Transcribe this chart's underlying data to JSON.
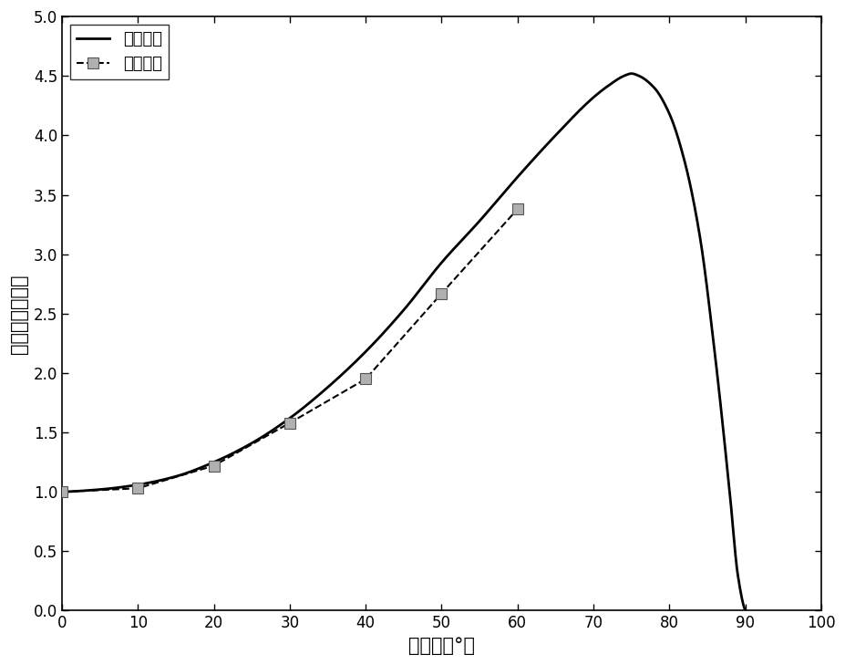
{
  "title": "",
  "xlabel": "入射角（°）",
  "ylabel": "相对质限去除率",
  "xlim": [
    0,
    100
  ],
  "ylim": [
    0,
    5
  ],
  "xticks": [
    0,
    10,
    20,
    30,
    40,
    50,
    60,
    70,
    80,
    90,
    100
  ],
  "yticks": [
    0,
    0.5,
    1,
    1.5,
    2,
    2.5,
    3,
    3.5,
    4,
    4.5,
    5
  ],
  "theory_color": "#000000",
  "exp_color": "#000000",
  "legend_labels": [
    "理论曲线",
    "实验曲线"
  ],
  "exp_x": [
    0,
    10,
    20,
    30,
    40,
    50,
    60
  ],
  "exp_y": [
    1.0,
    1.03,
    1.22,
    1.58,
    1.95,
    2.67,
    3.38
  ],
  "theory_x": [
    0,
    5,
    10,
    15,
    20,
    25,
    30,
    35,
    40,
    45,
    50,
    55,
    60,
    65,
    70,
    72,
    74,
    75,
    76,
    78,
    80,
    82,
    84,
    86,
    88,
    89,
    90
  ],
  "theory_y": [
    1.0,
    1.02,
    1.06,
    1.13,
    1.25,
    1.41,
    1.62,
    1.88,
    2.18,
    2.53,
    2.93,
    3.28,
    3.65,
    4.0,
    4.32,
    4.42,
    4.5,
    4.52,
    4.5,
    4.4,
    4.18,
    3.78,
    3.15,
    2.15,
    0.95,
    0.3,
    0.0
  ],
  "background_color": "#ffffff",
  "figsize": [
    9.28,
    7.29
  ],
  "dpi": 100
}
